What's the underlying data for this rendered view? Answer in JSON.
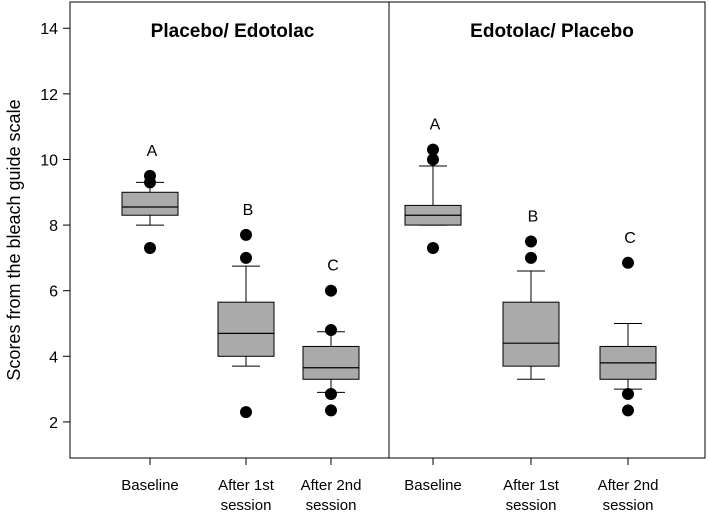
{
  "chart_data": {
    "type": "boxplot",
    "ylabel": "Scores from the bleach guide scale",
    "ylim": [
      0.9,
      14.8
    ],
    "yticks": [
      2,
      4,
      6,
      8,
      10,
      12,
      14
    ],
    "panels": [
      {
        "title": "Placebo/ Edotolac",
        "groups": [
          {
            "label": [
              "Baseline"
            ],
            "letter": "A",
            "whisker_low": 8.0,
            "q1": 8.3,
            "median": 8.55,
            "q3": 9.0,
            "whisker_high": 9.3,
            "outliers": [
              7.3,
              9.3,
              9.5
            ]
          },
          {
            "label": [
              "After 1st",
              "session"
            ],
            "letter": "B",
            "whisker_low": 3.7,
            "q1": 4.0,
            "median": 4.7,
            "q3": 5.65,
            "whisker_high": 6.75,
            "outliers": [
              2.3,
              7.0,
              7.7
            ]
          },
          {
            "label": [
              "After 2nd",
              "session"
            ],
            "letter": "C",
            "whisker_low": 2.9,
            "q1": 3.3,
            "median": 3.65,
            "q3": 4.3,
            "whisker_high": 4.75,
            "outliers": [
              2.35,
              2.85,
              4.8,
              6.0
            ]
          }
        ]
      },
      {
        "title": "Edotolac/ Placebo",
        "groups": [
          {
            "label": [
              "Baseline"
            ],
            "letter": "A",
            "whisker_low": 8.0,
            "q1": 8.0,
            "median": 8.3,
            "q3": 8.6,
            "whisker_high": 9.8,
            "outliers": [
              7.3,
              10.0,
              10.3
            ]
          },
          {
            "label": [
              "After 1st",
              "session"
            ],
            "letter": "B",
            "whisker_low": 3.3,
            "q1": 3.7,
            "median": 4.4,
            "q3": 5.65,
            "whisker_high": 6.6,
            "outliers": [
              7.0,
              7.5
            ]
          },
          {
            "label": [
              "After 2nd",
              "session"
            ],
            "letter": "C",
            "whisker_low": 3.0,
            "q1": 3.3,
            "median": 3.8,
            "q3": 4.3,
            "whisker_high": 5.0,
            "outliers": [
              2.35,
              2.85,
              6.85
            ]
          }
        ]
      }
    ]
  }
}
